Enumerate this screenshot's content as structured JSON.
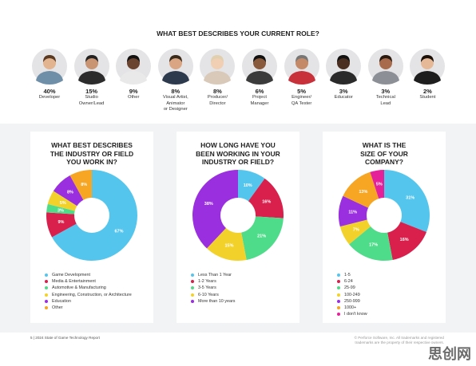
{
  "chart_data": [
    {
      "type": "pictogram",
      "title": "WHAT BEST DESCRIBES YOUR CURRENT ROLE?",
      "categories": [
        "Developer",
        "Studio\nOwner/Lead",
        "Other",
        "Visual Artist,\nAnimator\nor Designer",
        "Producer/\nDirector",
        "Project\nManager",
        "Engineer/\nQA Tester",
        "Educator",
        "Technical\nLead",
        "Student"
      ],
      "values": [
        40,
        15,
        9,
        8,
        8,
        6,
        5,
        3,
        3,
        2
      ],
      "value_labels": [
        "40%",
        "15%",
        "9%",
        "8%",
        "8%",
        "6%",
        "5%",
        "3%",
        "3%",
        "2%"
      ]
    },
    {
      "type": "donut",
      "title": "WHAT BEST DESCRIBES\nTHE INDUSTRY OR FIELD\nYOU WORK IN?",
      "categories": [
        "Game Development",
        "Media & Entertainment",
        "Automotive & Manufacturing",
        "Engineering, Construction, or Architecture",
        "Education",
        "Other"
      ],
      "values": [
        67,
        9,
        3,
        5,
        8,
        8
      ],
      "value_labels": [
        "67%",
        "9%",
        "3%",
        "5%",
        "8%",
        "8%"
      ],
      "colors": [
        "#54c5ec",
        "#d91f4c",
        "#4fdc8a",
        "#f2d22a",
        "#9a2fe0",
        "#f6a623"
      ]
    },
    {
      "type": "donut",
      "title": "HOW LONG HAVE YOU\nBEEN WORKING IN YOUR\nINDUSTRY OR FIELD?",
      "categories": [
        "Less Than 1 Year",
        "1-2 Years",
        "3-5 Years",
        "6-10 Years",
        "More than 10 years"
      ],
      "values": [
        10,
        16,
        21,
        15,
        38
      ],
      "value_labels": [
        "10%",
        "16%",
        "21%",
        "15%",
        "38%"
      ],
      "colors": [
        "#54c5ec",
        "#d91f4c",
        "#4fdc8a",
        "#f2d22a",
        "#9a2fe0"
      ]
    },
    {
      "type": "donut",
      "title": "WHAT IS THE\nSIZE OF YOUR\nCOMPANY?",
      "categories": [
        "1-5",
        "6-24",
        "25-99",
        "100-249",
        "250-999",
        "1000+",
        "I don't know"
      ],
      "values": [
        31,
        16,
        17,
        7,
        11,
        13,
        5
      ],
      "value_labels": [
        "31%",
        "16%",
        "17%",
        "7%",
        "11%",
        "13%",
        "5%"
      ],
      "colors": [
        "#54c5ec",
        "#d91f4c",
        "#4fdc8a",
        "#f2d22a",
        "#9a2fe0",
        "#f6a623",
        "#e5219a"
      ]
    }
  ],
  "footer": {
    "page": "5 | 2024 State of Game Technology Report",
    "legal": "© Perforce Software, Inc. All trademarks and registered\ntrademarks are the property of their respective owners."
  },
  "watermark": "思创网"
}
